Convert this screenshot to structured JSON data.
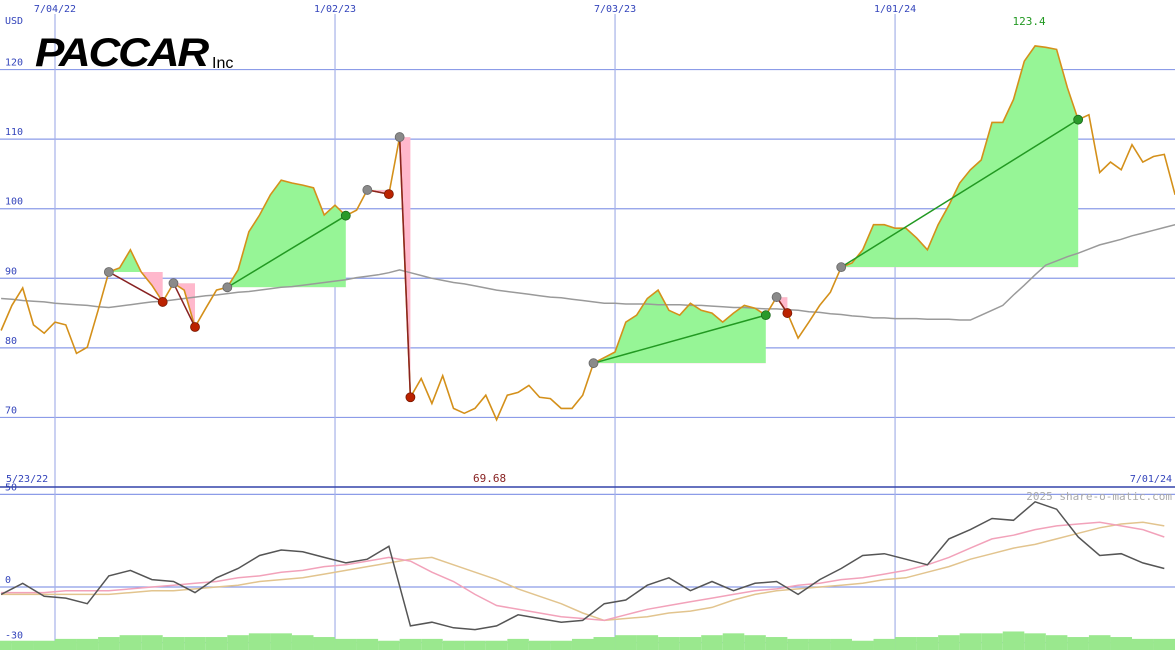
{
  "chart_data": [
    {
      "type": "line",
      "title": "PACCAR",
      "subtitle": "Inc",
      "y_label": "USD",
      "categories": [
        null,
        null,
        null,
        null,
        null,
        "7/04/22",
        null,
        null,
        null,
        null,
        null,
        null,
        null,
        null,
        null,
        null,
        null,
        null,
        null,
        null,
        null,
        null,
        null,
        null,
        null,
        null,
        null,
        null,
        null,
        null,
        null,
        "1/02/23",
        null,
        null,
        null,
        null,
        null,
        null,
        null,
        null,
        null,
        null,
        null,
        null,
        null,
        null,
        null,
        null,
        null,
        null,
        null,
        null,
        null,
        null,
        null,
        null,
        null,
        "7/03/23",
        null,
        null,
        null,
        null,
        null,
        null,
        null,
        null,
        null,
        null,
        null,
        null,
        null,
        null,
        null,
        null,
        null,
        null,
        null,
        null,
        null,
        null,
        null,
        null,
        null,
        "1/01/24",
        null,
        null,
        null,
        null,
        null,
        null,
        null,
        null,
        null,
        null,
        null,
        null,
        null,
        null,
        null,
        null,
        null,
        null,
        null,
        null,
        null,
        null,
        null,
        null,
        null,
        null
      ],
      "series": [
        {
          "color": "#d4901a",
          "values": [
            82.5,
            86.1,
            88.6,
            83.3,
            82.1,
            83.7,
            83.3,
            79.2,
            80.1,
            85.4,
            90.9,
            91.5,
            94.1,
            90.9,
            89,
            86.6,
            89.3,
            88.3,
            83,
            85.7,
            88.3,
            88.7,
            91.2,
            96.7,
            99.1,
            102,
            104.1,
            103.7,
            103.4,
            103,
            99.1,
            100.5,
            99,
            99.8,
            102.7,
            102.4,
            102.1,
            110.3,
            72.9,
            75.6,
            72,
            76,
            71.3,
            70.6,
            71.3,
            73.2,
            69.68,
            73.2,
            73.6,
            74.6,
            72.9,
            72.7,
            71.3,
            71.3,
            73.2,
            77.8,
            78.6,
            79.4,
            83.7,
            84.7,
            87.1,
            88.3,
            85.4,
            84.7,
            86.4,
            85.4,
            85,
            83.7,
            85,
            86.1,
            85.7,
            84.7,
            87.3,
            85,
            81.4,
            83.7,
            86.1,
            88,
            91.6,
            92.2,
            94.1,
            97.7,
            97.7,
            97.2,
            97.2,
            95.8,
            94.1,
            97.7,
            100.5,
            103.7,
            105.6,
            107,
            112.4,
            112.4,
            115.7,
            121.2,
            123.4,
            123.2,
            122.9,
            117.4,
            112.8,
            113.5,
            105.2,
            106.7,
            105.6,
            109.2,
            106.7,
            107.5,
            107.8,
            102
          ]
        },
        {
          "color": "#9a9a9a",
          "values": [
            87.1,
            87.0,
            86.8,
            86.7,
            86.6,
            86.4,
            86.3,
            86.2,
            86.1,
            85.9,
            85.8,
            86.0,
            86.2,
            86.4,
            86.6,
            86.7,
            86.9,
            87.1,
            87.3,
            87.5,
            87.6,
            87.8,
            88.0,
            88.1,
            88.3,
            88.5,
            88.7,
            88.8,
            89.0,
            89.2,
            89.4,
            89.6,
            89.8,
            90.1,
            90.3,
            90.5,
            90.8,
            91.2,
            90.8,
            90.4,
            90.0,
            89.7,
            89.4,
            89.2,
            88.9,
            88.6,
            88.3,
            88.1,
            87.9,
            87.7,
            87.5,
            87.3,
            87.2,
            87.0,
            86.8,
            86.6,
            86.4,
            86.4,
            86.3,
            86.3,
            86.3,
            86.2,
            86.2,
            86.2,
            86.1,
            86.1,
            86.0,
            85.9,
            85.8,
            85.8,
            85.7,
            85.6,
            85.6,
            85.5,
            85.4,
            85.2,
            85.1,
            84.9,
            84.8,
            84.6,
            84.5,
            84.3,
            84.3,
            84.2,
            84.2,
            84.2,
            84.1,
            84.1,
            84.1,
            84.0,
            84.0,
            84.7,
            85.4,
            86.1,
            87.6,
            89.0,
            90.5,
            91.9,
            92.5,
            93.1,
            93.6,
            94.2,
            94.8,
            95.2,
            95.6,
            96.1,
            96.5,
            96.9,
            97.3,
            97.7
          ]
        }
      ],
      "trades": [
        {
          "entry": 10,
          "exit": 15
        },
        {
          "entry": 16,
          "exit": 18
        },
        {
          "entry": 21,
          "exit": 32
        },
        {
          "entry": 34,
          "exit": 36
        },
        {
          "entry": 37,
          "exit": 38
        },
        {
          "entry": 55,
          "exit": 71
        },
        {
          "entry": 72,
          "exit": 73
        },
        {
          "entry": 78,
          "exit": 100
        }
      ],
      "gain_color": "#96f596",
      "loss_color": "#ffb8cc",
      "max_label": "123.4",
      "min_label": "69.68",
      "range_start": "5/23/22",
      "range_end": "7/01/24",
      "ylim": [
        60,
        130
      ],
      "yticks": [
        70,
        80,
        90,
        100,
        110,
        120
      ],
      "grid": true
    },
    {
      "type": "line",
      "watermark": "2025 share-o-matic.com",
      "categories": [
        null,
        null,
        null,
        null,
        null,
        null,
        null,
        null,
        null,
        null,
        null,
        null,
        null,
        null,
        null,
        null,
        null,
        null,
        null,
        null,
        null,
        null,
        null,
        null,
        null,
        null,
        null,
        null,
        null,
        null,
        null,
        null,
        null,
        null,
        null,
        null,
        null,
        null,
        null,
        null,
        null,
        null,
        null,
        null,
        null,
        null,
        null,
        null,
        null,
        null,
        null,
        null,
        null,
        null,
        null
      ],
      "series": [
        {
          "type": "bar",
          "color": "#9ae88e",
          "values": [
            -29,
            -29,
            -29,
            -28,
            -28,
            -27,
            -26,
            -26,
            -27,
            -27,
            -27,
            -26,
            -25,
            -25,
            -26,
            -27,
            -28,
            -28,
            -29,
            -28,
            -28,
            -29,
            -29,
            -29,
            -28,
            -29,
            -29,
            -28,
            -27,
            -26,
            -26,
            -27,
            -27,
            -26,
            -25,
            -26,
            -27,
            -28,
            -28,
            -28,
            -29,
            -28,
            -27,
            -27,
            -26,
            -25,
            -25,
            -24,
            -25,
            -26,
            -27,
            -26,
            -27,
            -28,
            -28
          ]
        },
        {
          "color": "#e2c48e",
          "values": [
            -4,
            -4,
            -4,
            -4,
            -4,
            -4,
            -3,
            -2,
            -2,
            -1,
            0,
            1,
            3,
            4,
            5,
            7,
            9,
            11,
            13,
            15,
            16,
            12,
            8,
            4,
            -1,
            -5,
            -9,
            -14,
            -18,
            -17,
            -16,
            -14,
            -13,
            -11,
            -7,
            -4,
            -2,
            -1,
            0,
            1,
            2,
            4,
            5,
            8,
            11,
            15,
            18,
            21,
            23,
            26,
            29,
            32,
            34,
            35,
            33
          ]
        },
        {
          "color": "#f2a2ba",
          "values": [
            -3,
            -3,
            -3,
            -2,
            -2,
            -2,
            -1,
            0,
            1,
            2,
            3,
            5,
            6,
            8,
            9,
            11,
            12,
            14,
            16,
            14,
            8,
            3,
            -4,
            -10,
            -12,
            -14,
            -16,
            -17,
            -18,
            -15,
            -12,
            -10,
            -8,
            -6,
            -4,
            -2,
            -1,
            1,
            2,
            4,
            5,
            7,
            9,
            12,
            16,
            21,
            26,
            28,
            31,
            33,
            34,
            35,
            33,
            31,
            27
          ]
        },
        {
          "color": "#555555",
          "values": [
            -4,
            2,
            -5,
            -6,
            -9,
            6,
            9,
            4,
            3,
            -3,
            5,
            10,
            17,
            20,
            19,
            16,
            13,
            15,
            22,
            -21,
            -19,
            -22,
            -23,
            -21,
            -15,
            -17,
            -19,
            -18,
            -9,
            -7,
            1,
            5,
            -2,
            3,
            -2,
            2,
            3,
            -4,
            4,
            10,
            17,
            18,
            15,
            12,
            26,
            31,
            37,
            36,
            46,
            42,
            27,
            17,
            18,
            13,
            10
          ]
        }
      ],
      "ylim": [
        -34,
        54
      ],
      "yticks": [
        50,
        0,
        -30
      ],
      "grid": true
    }
  ]
}
